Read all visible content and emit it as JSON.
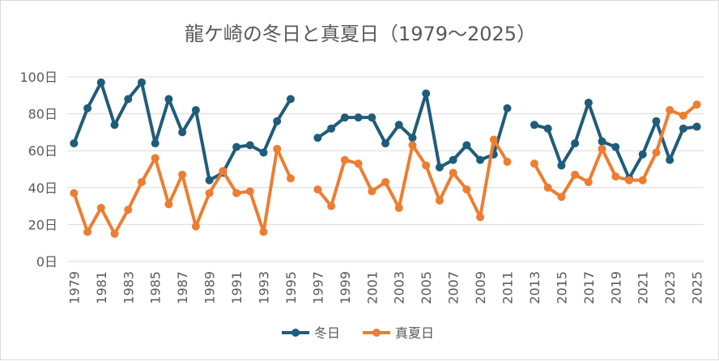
{
  "chart_data": {
    "type": "line",
    "title": "龍ケ崎の冬日と真夏日（1979～2025）",
    "xlabel": "",
    "ylabel": "",
    "ylim": [
      0,
      100
    ],
    "y_ticks": [
      0,
      20,
      40,
      60,
      80,
      100
    ],
    "y_tick_labels": [
      "0日",
      "20日",
      "40日",
      "60日",
      "80日",
      "100日"
    ],
    "gridlines": true,
    "legend_position": "bottom",
    "x_tick_labels": [
      "1979",
      "1981",
      "1983",
      "1985",
      "1987",
      "1989",
      "1991",
      "1993",
      "1995",
      "1997",
      "1999",
      "2001",
      "2003",
      "2005",
      "2007",
      "2009",
      "2011",
      "2013",
      "2015",
      "2017",
      "2019",
      "2021",
      "2023",
      "2025"
    ],
    "x": [
      1979,
      1980,
      1981,
      1982,
      1983,
      1984,
      1985,
      1986,
      1987,
      1988,
      1989,
      1990,
      1991,
      1992,
      1993,
      1994,
      1995,
      1996,
      1997,
      1998,
      1999,
      2000,
      2001,
      2002,
      2003,
      2004,
      2005,
      2006,
      2007,
      2008,
      2009,
      2010,
      2011,
      2012,
      2013,
      2014,
      2015,
      2016,
      2017,
      2018,
      2019,
      2020,
      2021,
      2022,
      2023,
      2024,
      2025
    ],
    "series": [
      {
        "name": "冬日",
        "color": "#1f5c7a",
        "values": [
          64,
          83,
          97,
          74,
          88,
          97,
          64,
          88,
          70,
          82,
          44,
          48,
          62,
          63,
          59,
          76,
          88,
          null,
          67,
          72,
          78,
          78,
          78,
          64,
          74,
          67,
          91,
          51,
          55,
          63,
          55,
          58,
          83,
          null,
          74,
          72,
          52,
          64,
          86,
          65,
          62,
          45,
          58,
          76,
          55,
          72,
          73
        ]
      },
      {
        "name": "真夏日",
        "color": "#ed7d31",
        "values": [
          37,
          16,
          29,
          15,
          28,
          43,
          56,
          31,
          47,
          19,
          37,
          49,
          37,
          38,
          16,
          61,
          45,
          null,
          39,
          30,
          55,
          53,
          38,
          43,
          29,
          63,
          52,
          33,
          48,
          39,
          24,
          66,
          54,
          null,
          53,
          40,
          35,
          47,
          43,
          61,
          46,
          44,
          44,
          59,
          82,
          79,
          85
        ]
      }
    ]
  }
}
